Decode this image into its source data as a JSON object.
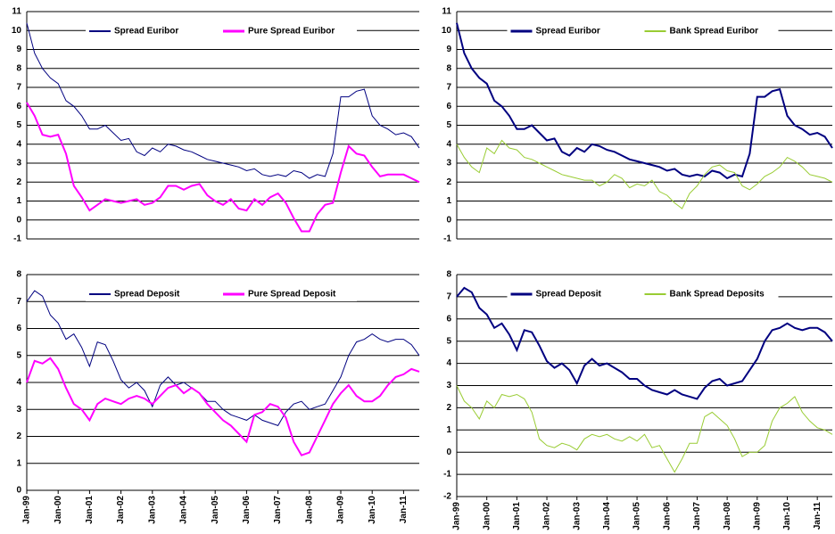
{
  "chart_data": [
    {
      "type": "line",
      "ylim": [
        -1,
        11
      ],
      "yticks": [
        -1,
        0,
        1,
        2,
        3,
        4,
        5,
        6,
        7,
        8,
        9,
        10,
        11
      ],
      "grid": true,
      "legend": "top",
      "series": [
        {
          "name": "Spread Euribor",
          "color": "#000080",
          "width": 1,
          "values": [
            10.4,
            8.8,
            8,
            7.5,
            7.2,
            6.3,
            6,
            5.5,
            4.8,
            4.8,
            5,
            4.6,
            4.2,
            4.3,
            3.6,
            3.4,
            3.8,
            3.6,
            4,
            3.9,
            3.7,
            3.6,
            3.4,
            3.2,
            3.1,
            3,
            2.9,
            2.8,
            2.6,
            2.7,
            2.4,
            2.3,
            2.4,
            2.3,
            2.6,
            2.5,
            2.2,
            2.4,
            2.3,
            3.5,
            6.5,
            6.5,
            6.8,
            6.9,
            5.5,
            5,
            4.8,
            4.5,
            4.6,
            4.4,
            3.8
          ]
        },
        {
          "name": "Pure Spread Euribor",
          "color": "#ff00ff",
          "width": 2,
          "values": [
            6.2,
            5.5,
            4.5,
            4.4,
            4.5,
            3.5,
            1.8,
            1.2,
            0.5,
            0.8,
            1.1,
            1,
            0.9,
            1,
            1.1,
            0.8,
            0.9,
            1.2,
            1.8,
            1.8,
            1.6,
            1.8,
            1.9,
            1.3,
            1,
            0.8,
            1.1,
            0.6,
            0.5,
            1.1,
            0.8,
            1.2,
            1.4,
            0.9,
            0.1,
            -0.6,
            -0.6,
            0.3,
            0.8,
            0.9,
            2.5,
            3.9,
            3.5,
            3.4,
            2.8,
            2.3,
            2.4,
            2.4,
            2.4,
            2.2,
            2.0
          ]
        }
      ]
    },
    {
      "type": "line",
      "ylim": [
        -1,
        11
      ],
      "yticks": [
        -1,
        0,
        1,
        2,
        3,
        4,
        5,
        6,
        7,
        8,
        9,
        10,
        11
      ],
      "grid": true,
      "legend": "top",
      "series": [
        {
          "name": "Spread Euribor",
          "color": "#000080",
          "width": 2,
          "values": [
            10.4,
            8.8,
            8,
            7.5,
            7.2,
            6.3,
            6,
            5.5,
            4.8,
            4.8,
            5,
            4.6,
            4.2,
            4.3,
            3.6,
            3.4,
            3.8,
            3.6,
            4,
            3.9,
            3.7,
            3.6,
            3.4,
            3.2,
            3.1,
            3,
            2.9,
            2.8,
            2.6,
            2.7,
            2.4,
            2.3,
            2.4,
            2.3,
            2.6,
            2.5,
            2.2,
            2.4,
            2.3,
            3.5,
            6.5,
            6.5,
            6.8,
            6.9,
            5.5,
            5,
            4.8,
            4.5,
            4.6,
            4.4,
            3.8
          ]
        },
        {
          "name": "Bank Spread Euribor",
          "color": "#99cc33",
          "width": 1,
          "values": [
            4,
            3.3,
            2.8,
            2.5,
            3.8,
            3.5,
            4.2,
            3.8,
            3.7,
            3.3,
            3.2,
            3,
            2.8,
            2.6,
            2.4,
            2.3,
            2.2,
            2.1,
            2.1,
            1.8,
            2.0,
            2.4,
            2.2,
            1.7,
            1.9,
            1.8,
            2.1,
            1.5,
            1.3,
            0.9,
            0.6,
            1.4,
            1.8,
            2.4,
            2.8,
            2.9,
            2.6,
            2.5,
            1.8,
            1.6,
            1.9,
            2.3,
            2.5,
            2.8,
            3.3,
            3.1,
            2.8,
            2.4,
            2.3,
            2.2,
            2.0
          ]
        }
      ]
    },
    {
      "type": "line",
      "ylim": [
        0,
        8
      ],
      "yticks": [
        0,
        1,
        2,
        3,
        4,
        5,
        6,
        7,
        8
      ],
      "grid": true,
      "legend": "top",
      "categories": [
        "Jan-99",
        null,
        null,
        null,
        "Jan-00",
        null,
        null,
        null,
        "Jan-01",
        null,
        null,
        null,
        "Jan-02",
        null,
        null,
        null,
        "Jan-03",
        null,
        null,
        null,
        "Jan-04",
        null,
        null,
        null,
        "Jan-05",
        null,
        null,
        null,
        "Jan-06",
        null,
        null,
        null,
        "Jan-07",
        null,
        null,
        null,
        "Jan-08",
        null,
        null,
        null,
        "Jan-09",
        null,
        null,
        null,
        "Jan-10",
        null,
        null,
        null,
        "Jan-11",
        null,
        null
      ],
      "series": [
        {
          "name": "Spread Deposit",
          "color": "#000080",
          "width": 1,
          "values": [
            7,
            7.4,
            7.2,
            6.5,
            6.2,
            5.6,
            5.8,
            5.3,
            4.6,
            5.5,
            5.4,
            4.8,
            4.1,
            3.8,
            4,
            3.7,
            3.1,
            3.9,
            4.2,
            3.9,
            4.0,
            3.8,
            3.6,
            3.3,
            3.3,
            3,
            2.8,
            2.7,
            2.6,
            2.8,
            2.6,
            2.5,
            2.4,
            2.9,
            3.2,
            3.3,
            3,
            3.1,
            3.2,
            3.7,
            4.2,
            5.0,
            5.5,
            5.6,
            5.8,
            5.6,
            5.5,
            5.6,
            5.6,
            5.4,
            5.0
          ]
        },
        {
          "name": "Pure Spread Deposit",
          "color": "#ff00ff",
          "width": 2,
          "values": [
            4,
            4.8,
            4.7,
            4.9,
            4.5,
            3.8,
            3.2,
            3,
            2.6,
            3.2,
            3.4,
            3.3,
            3.2,
            3.4,
            3.5,
            3.4,
            3.2,
            3.5,
            3.8,
            3.9,
            3.6,
            3.8,
            3.6,
            3.2,
            2.9,
            2.6,
            2.4,
            2.1,
            1.8,
            2.8,
            2.9,
            3.2,
            3.1,
            2.7,
            1.8,
            1.3,
            1.4,
            2,
            2.6,
            3.2,
            3.6,
            3.9,
            3.5,
            3.3,
            3.3,
            3.5,
            3.9,
            4.2,
            4.3,
            4.5,
            4.4
          ]
        }
      ]
    },
    {
      "type": "line",
      "ylim": [
        -2,
        8
      ],
      "yticks": [
        -2,
        -1,
        0,
        1,
        2,
        3,
        4,
        5,
        6,
        7,
        8
      ],
      "grid": true,
      "legend": "top",
      "categories": [
        "Jan-99",
        null,
        null,
        null,
        "Jan-00",
        null,
        null,
        null,
        "Jan-01",
        null,
        null,
        null,
        "Jan-02",
        null,
        null,
        null,
        "Jan-03",
        null,
        null,
        null,
        "Jan-04",
        null,
        null,
        null,
        "Jan-05",
        null,
        null,
        null,
        "Jan-06",
        null,
        null,
        null,
        "Jan-07",
        null,
        null,
        null,
        "Jan-08",
        null,
        null,
        null,
        "Jan-09",
        null,
        null,
        null,
        "Jan-10",
        null,
        null,
        null,
        "Jan-11",
        null,
        null
      ],
      "series": [
        {
          "name": "Spread Deposit",
          "color": "#000080",
          "width": 2,
          "values": [
            7,
            7.4,
            7.2,
            6.5,
            6.2,
            5.6,
            5.8,
            5.3,
            4.6,
            5.5,
            5.4,
            4.8,
            4.1,
            3.8,
            4,
            3.7,
            3.1,
            3.9,
            4.2,
            3.9,
            4.0,
            3.8,
            3.6,
            3.3,
            3.3,
            3,
            2.8,
            2.7,
            2.6,
            2.8,
            2.6,
            2.5,
            2.4,
            2.9,
            3.2,
            3.3,
            3,
            3.1,
            3.2,
            3.7,
            4.2,
            5.0,
            5.5,
            5.6,
            5.8,
            5.6,
            5.5,
            5.6,
            5.6,
            5.4,
            5.0
          ]
        },
        {
          "name": "Bank Spread Deposits",
          "color": "#99cc33",
          "width": 1,
          "values": [
            3,
            2.3,
            2,
            1.5,
            2.3,
            2,
            2.6,
            2.5,
            2.6,
            2.4,
            1.8,
            0.6,
            0.3,
            0.2,
            0.4,
            0.3,
            0.1,
            0.6,
            0.8,
            0.7,
            0.8,
            0.6,
            0.5,
            0.7,
            0.5,
            0.8,
            0.2,
            0.3,
            -0.3,
            -0.9,
            -0.3,
            0.4,
            0.4,
            1.6,
            1.8,
            1.5,
            1.2,
            0.6,
            -0.2,
            0,
            0,
            0.3,
            1.4,
            2.0,
            2.2,
            2.5,
            1.8,
            1.4,
            1.1,
            1.0,
            0.8
          ]
        }
      ]
    }
  ]
}
